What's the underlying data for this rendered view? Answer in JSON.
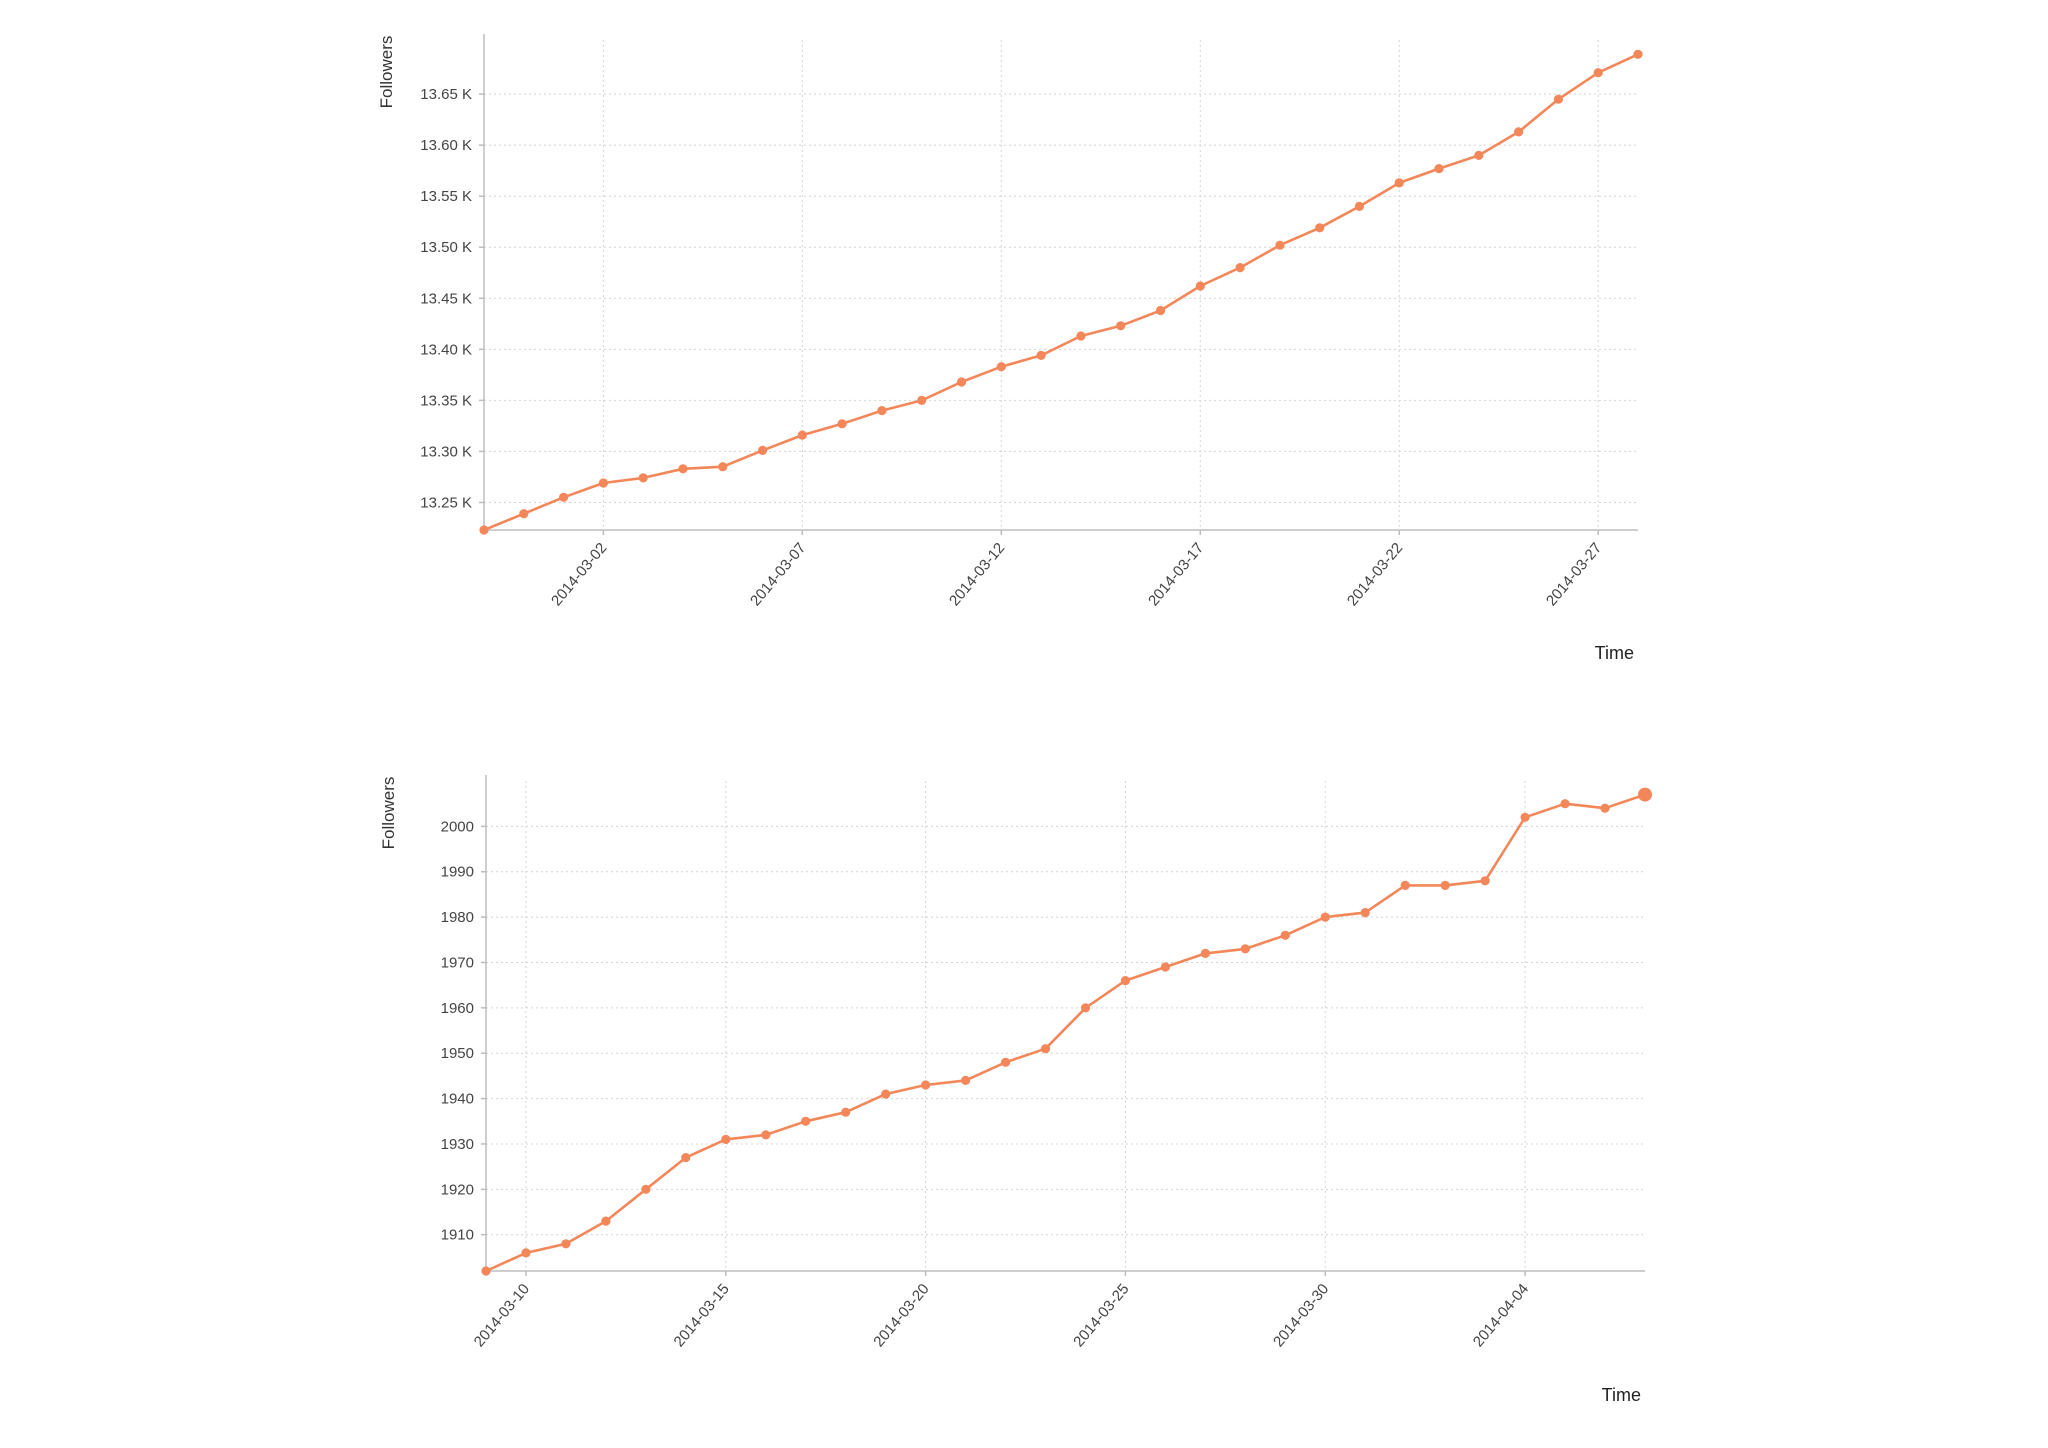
{
  "accent_color": "#f3875a",
  "chart_data": [
    {
      "type": "line",
      "title": "",
      "xlabel": "Time",
      "ylabel": "Followers",
      "x_tick_labels": [
        "2014-03-02",
        "2014-03-07",
        "2014-03-12",
        "2014-03-17",
        "2014-03-22",
        "2014-03-27"
      ],
      "y_tick_labels": [
        "13.25 K",
        "13.30 K",
        "13.35 K",
        "13.40 K",
        "13.45 K",
        "13.50 K",
        "13.55 K",
        "13.60 K",
        "13.65 K"
      ],
      "xlim": [
        "2014-02-27",
        "2014-03-28"
      ],
      "ylim": [
        13223,
        13703
      ],
      "grid": true,
      "series": [
        {
          "color": "#f3875a",
          "x": [
            "2014-02-27",
            "2014-02-28",
            "2014-03-01",
            "2014-03-02",
            "2014-03-03",
            "2014-03-04",
            "2014-03-05",
            "2014-03-06",
            "2014-03-07",
            "2014-03-08",
            "2014-03-09",
            "2014-03-10",
            "2014-03-11",
            "2014-03-12",
            "2014-03-13",
            "2014-03-14",
            "2014-03-15",
            "2014-03-16",
            "2014-03-17",
            "2014-03-18",
            "2014-03-19",
            "2014-03-20",
            "2014-03-21",
            "2014-03-22",
            "2014-03-23",
            "2014-03-24",
            "2014-03-25",
            "2014-03-26",
            "2014-03-27",
            "2014-03-28"
          ],
          "y": [
            13223,
            13239,
            13255,
            13269,
            13274,
            13283,
            13285,
            13301,
            13316,
            13327,
            13340,
            13350,
            13368,
            13383,
            13394,
            13413,
            13423,
            13438,
            13462,
            13480,
            13502,
            13519,
            13540,
            13563,
            13577,
            13590,
            13613,
            13645,
            13671,
            13689
          ]
        }
      ]
    },
    {
      "type": "line",
      "title": "",
      "xlabel": "Time",
      "ylabel": "Followers",
      "x_tick_labels": [
        "2014-03-10",
        "2014-03-15",
        "2014-03-20",
        "2014-03-25",
        "2014-03-30",
        "2014-04-04"
      ],
      "y_tick_labels": [
        "1910",
        "1920",
        "1930",
        "1940",
        "1950",
        "1960",
        "1970",
        "1980",
        "1990",
        "2000"
      ],
      "xlim": [
        "2014-03-09",
        "2014-04-07"
      ],
      "ylim": [
        1902,
        2010
      ],
      "grid": true,
      "series": [
        {
          "color": "#f3875a",
          "x": [
            "2014-03-09",
            "2014-03-10",
            "2014-03-11",
            "2014-03-12",
            "2014-03-13",
            "2014-03-14",
            "2014-03-15",
            "2014-03-16",
            "2014-03-17",
            "2014-03-18",
            "2014-03-19",
            "2014-03-20",
            "2014-03-21",
            "2014-03-22",
            "2014-03-23",
            "2014-03-24",
            "2014-03-25",
            "2014-03-26",
            "2014-03-27",
            "2014-03-28",
            "2014-03-29",
            "2014-03-30",
            "2014-03-31",
            "2014-04-01",
            "2014-04-02",
            "2014-04-03",
            "2014-04-04",
            "2014-04-05",
            "2014-04-06",
            "2014-04-07"
          ],
          "y": [
            1902,
            1906,
            1908,
            1913,
            1920,
            1927,
            1931,
            1932,
            1935,
            1937,
            1941,
            1943,
            1944,
            1948,
            1951,
            1960,
            1966,
            1969,
            1972,
            1973,
            1976,
            1980,
            1981,
            1987,
            1987,
            1988,
            2002,
            2005,
            2004,
            2007
          ]
        }
      ]
    }
  ]
}
